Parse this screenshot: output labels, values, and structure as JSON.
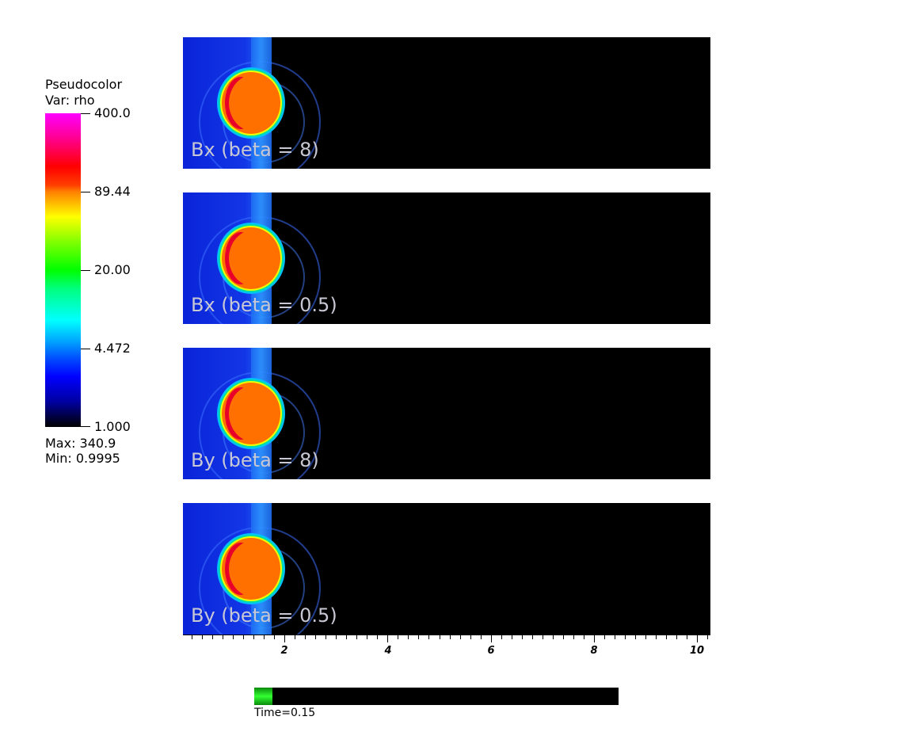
{
  "legend": {
    "title": "Pseudocolor",
    "var_line": "Var: rho",
    "ticks": [
      "400.0",
      "89.44",
      "20.00",
      "4.472",
      "1.000"
    ],
    "max_line": "Max:  340.9",
    "min_line": "Min:  0.9995"
  },
  "panels": [
    {
      "label": "Bx (beta = 8)"
    },
    {
      "label": "Bx (beta = 0.5)"
    },
    {
      "label": "By (beta = 8)"
    },
    {
      "label": "By (beta = 0.5)"
    }
  ],
  "axis": {
    "labels": [
      "2",
      "4",
      "6",
      "8",
      "10"
    ]
  },
  "time": {
    "label": "Time=0.15",
    "progress_fraction": 0.05
  },
  "colors": {
    "panel_background": "#000000",
    "ambient_medium": "#0a24d8",
    "cloud": "#ff7000",
    "cloud_edge": "#e8002a",
    "time_fill": "#33ff33"
  }
}
